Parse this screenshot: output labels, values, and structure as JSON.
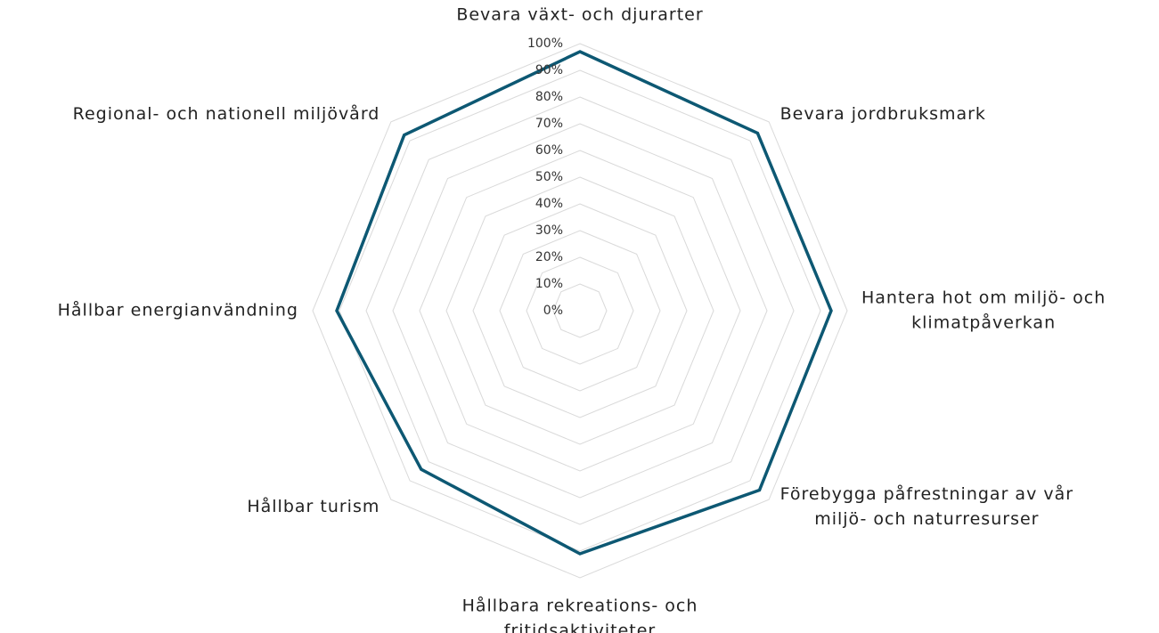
{
  "chart_data": {
    "type": "radar",
    "categories": [
      [
        "Bevara växt- och djurarter"
      ],
      [
        "Bevara jordbruksmark"
      ],
      [
        "Hantera hot om miljö- och",
        "klimatpåverkan"
      ],
      [
        "Förebygga påfrestningar av vår",
        "miljö- och naturresurser"
      ],
      [
        "Hållbara rekreations- och",
        "fritidsaktiviteter"
      ],
      [
        "Hållbar turism"
      ],
      [
        "Hållbar energianvändning"
      ],
      [
        "Regional- och nationell miljövård"
      ]
    ],
    "values": [
      97,
      94,
      94,
      95,
      91,
      84,
      91,
      93
    ],
    "color": "#0d5873",
    "rlim": [
      0,
      100
    ],
    "rticks": [
      {
        "value": 0,
        "label": "0%"
      },
      {
        "value": 10,
        "label": "10%"
      },
      {
        "value": 20,
        "label": "20%"
      },
      {
        "value": 30,
        "label": "30%"
      },
      {
        "value": 40,
        "label": "40%"
      },
      {
        "value": 50,
        "label": "50%"
      },
      {
        "value": 60,
        "label": "60%"
      },
      {
        "value": 70,
        "label": "70%"
      },
      {
        "value": 80,
        "label": "80%"
      },
      {
        "value": 90,
        "label": "90%"
      },
      {
        "value": 100,
        "label": "100%"
      }
    ],
    "grid": true
  }
}
